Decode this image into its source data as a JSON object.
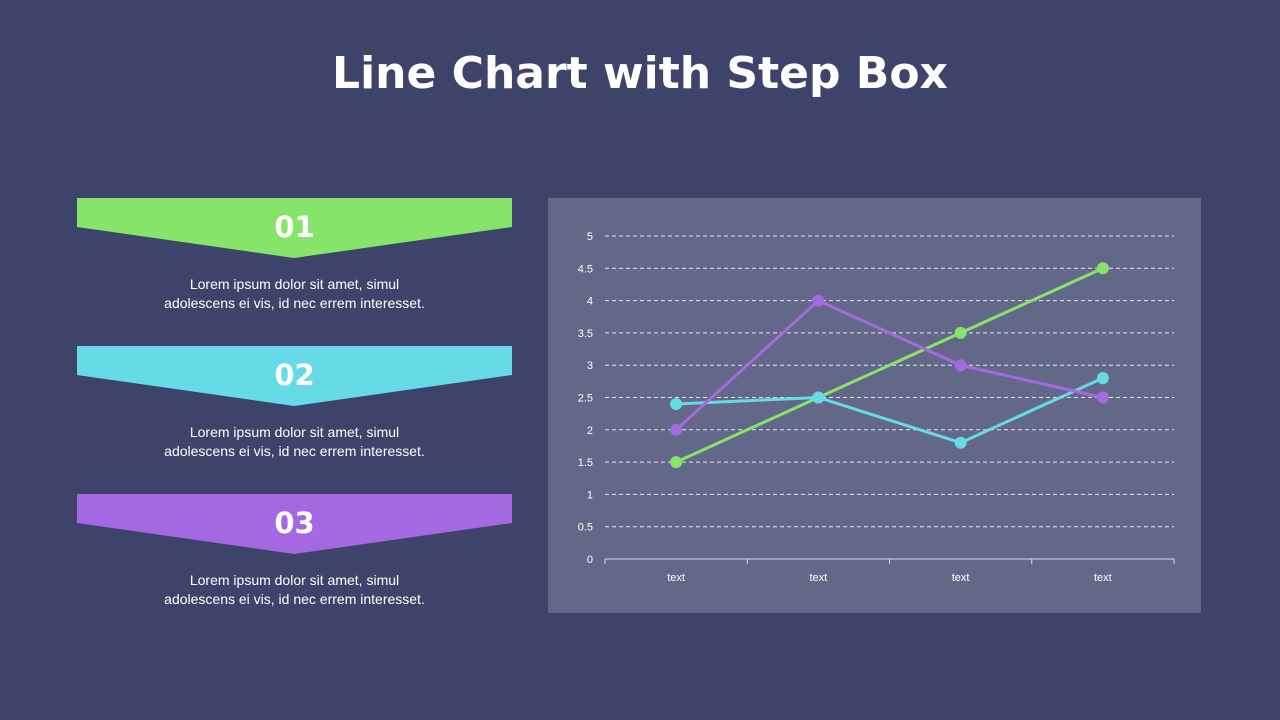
{
  "title": "Line Chart with Step Box",
  "steps": [
    {
      "number": "01",
      "color": "#86e46a",
      "text": "Lorem ipsum dolor sit amet, simul adolescens ei vis, id nec errem interesset."
    },
    {
      "number": "02",
      "color": "#66dae6",
      "text": "Lorem ipsum dolor sit amet, simul adolescens ei vis, id nec errem interesset."
    },
    {
      "number": "03",
      "color": "#a469e2",
      "text": "Lorem ipsum dolor sit amet, simul adolescens ei vis, id nec errem interesset."
    }
  ],
  "chart_data": {
    "type": "line",
    "categories": [
      "text",
      "text",
      "text",
      "text"
    ],
    "ylim": [
      0,
      5
    ],
    "yticks": [
      "0",
      "0.5",
      "1",
      "1.5",
      "2",
      "2.5",
      "3",
      "3.5",
      "4",
      "4.5",
      "5"
    ],
    "grid": true,
    "series": [
      {
        "color": "#86e46a",
        "values": [
          1.5,
          2.5,
          3.5,
          4.5
        ]
      },
      {
        "color": "#66dae6",
        "values": [
          2.4,
          2.5,
          1.8,
          2.8
        ]
      },
      {
        "color": "#a469e2",
        "values": [
          2,
          4,
          3,
          2.5
        ]
      }
    ]
  }
}
